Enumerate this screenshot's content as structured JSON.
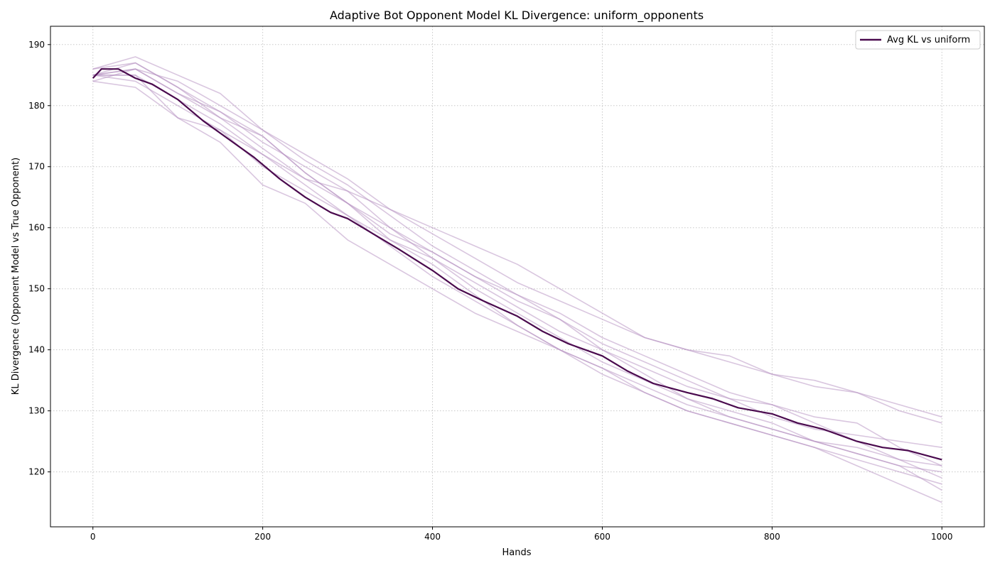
{
  "chart_data": {
    "type": "line",
    "title": "Adaptive Bot Opponent Model KL Divergence: uniform_opponents",
    "xlabel": "Hands",
    "ylabel": "KL Divergence (Opponent Model vs True Opponent)",
    "xlim": [
      -50,
      1050
    ],
    "ylim": [
      111,
      193
    ],
    "xticks": [
      0,
      200,
      400,
      600,
      800,
      1000
    ],
    "yticks": [
      120,
      130,
      140,
      150,
      160,
      170,
      180,
      190
    ],
    "grid": true,
    "legend_position": "top-right",
    "colors": {
      "average": "#4a0a4e",
      "runs": "#b48ec0"
    },
    "series": [
      {
        "name": "Avg KL vs uniform",
        "role": "average",
        "x": [
          0,
          10,
          20,
          30,
          50,
          70,
          100,
          130,
          160,
          190,
          220,
          250,
          280,
          300,
          330,
          360,
          400,
          430,
          460,
          500,
          530,
          560,
          600,
          630,
          660,
          700,
          730,
          760,
          800,
          830,
          860,
          900,
          930,
          960,
          1000
        ],
        "y": [
          184.5,
          186,
          186,
          186,
          184.5,
          183.5,
          181,
          177.5,
          174.5,
          171.5,
          168,
          165,
          162.5,
          161.5,
          159,
          156.5,
          153,
          150,
          148,
          145.5,
          143,
          141,
          139,
          136.5,
          134.5,
          133,
          132,
          130.5,
          129.5,
          128,
          127,
          125,
          124,
          123.5,
          122
        ]
      },
      {
        "role": "run",
        "x": [
          0,
          50,
          100,
          150,
          200,
          250,
          300,
          350,
          400,
          450,
          500,
          550,
          600,
          650,
          700,
          750,
          800,
          850,
          900,
          950,
          1000
        ],
        "y": [
          185,
          186,
          182,
          179,
          175,
          169,
          164,
          158,
          155,
          151,
          147,
          143,
          140,
          137,
          134,
          132,
          131,
          129,
          128,
          124,
          121
        ]
      },
      {
        "role": "run",
        "x": [
          0,
          50,
          100,
          150,
          200,
          250,
          300,
          350,
          400,
          450,
          500,
          550,
          600,
          650,
          700,
          750,
          800,
          850,
          900,
          950,
          1000
        ],
        "y": [
          185,
          185,
          178,
          176,
          172,
          168,
          166,
          163,
          160,
          157,
          154,
          150,
          146,
          142,
          140,
          139,
          136,
          135,
          133,
          131,
          129
        ]
      },
      {
        "role": "run",
        "x": [
          0,
          50,
          100,
          150,
          200,
          250,
          300,
          350,
          400,
          450,
          500,
          550,
          600,
          650,
          700,
          750,
          800,
          850,
          900,
          950,
          1000
        ],
        "y": [
          184,
          183,
          178,
          174,
          167,
          164,
          158,
          154,
          150,
          146,
          143,
          140,
          137,
          133,
          130,
          128,
          126,
          124,
          121,
          118,
          115
        ]
      },
      {
        "role": "run",
        "x": [
          0,
          50,
          100,
          150,
          200,
          250,
          300,
          350,
          400,
          450,
          500,
          550,
          600,
          650,
          700,
          750,
          800,
          850,
          900,
          950,
          1000
        ],
        "y": [
          186,
          187,
          183,
          179,
          174,
          170,
          166,
          160,
          156,
          152,
          149,
          146,
          142,
          139,
          136,
          133,
          131,
          128,
          125,
          122,
          119
        ]
      },
      {
        "role": "run",
        "x": [
          0,
          50,
          100,
          150,
          200,
          250,
          300,
          350,
          400,
          450,
          500,
          550,
          600,
          650,
          700,
          750,
          800,
          850,
          900,
          950,
          1000
        ],
        "y": [
          185,
          184,
          180,
          176,
          170,
          166,
          162,
          158,
          154,
          149,
          144,
          140,
          137,
          134,
          131,
          129,
          127,
          125,
          123,
          121,
          120
        ]
      },
      {
        "role": "run",
        "x": [
          0,
          50,
          100,
          150,
          200,
          250,
          300,
          350,
          400,
          450,
          500,
          550,
          600,
          650,
          700,
          750,
          800,
          850,
          900,
          950,
          1000
        ],
        "y": [
          184,
          186,
          182,
          178,
          175,
          169,
          164,
          159,
          156,
          152,
          148,
          145,
          140,
          136,
          132,
          130,
          128,
          125,
          123,
          121,
          117
        ]
      },
      {
        "role": "run",
        "x": [
          0,
          50,
          100,
          150,
          200,
          250,
          300,
          350,
          400,
          450,
          500,
          550,
          600,
          650,
          700,
          750,
          800,
          850,
          900,
          950,
          1000
        ],
        "y": [
          185,
          186,
          184,
          180,
          176,
          172,
          168,
          163,
          159,
          155,
          151,
          148,
          145,
          142,
          140,
          138,
          136,
          134,
          133,
          130,
          128
        ]
      },
      {
        "role": "run",
        "x": [
          0,
          50,
          100,
          150,
          200,
          250,
          300,
          350,
          400,
          450,
          500,
          550,
          600,
          650,
          700,
          750,
          800,
          850,
          900,
          950,
          1000
        ],
        "y": [
          185,
          185,
          181,
          177,
          172,
          167,
          162,
          157,
          152,
          148,
          144,
          140,
          136,
          133,
          130,
          128,
          126,
          124,
          122,
          120,
          118
        ]
      },
      {
        "role": "run",
        "x": [
          0,
          50,
          100,
          150,
          200,
          250,
          300,
          350,
          400,
          450,
          500,
          550,
          600,
          650,
          700,
          750,
          800,
          850,
          900,
          950,
          1000
        ],
        "y": [
          185,
          187,
          183,
          178,
          173,
          168,
          164,
          160,
          155,
          150,
          146,
          142,
          138,
          135,
          132,
          129,
          127,
          125,
          124,
          122,
          121
        ]
      },
      {
        "role": "run",
        "x": [
          0,
          50,
          100,
          150,
          200,
          250,
          300,
          350,
          400,
          450,
          500,
          550,
          600,
          650,
          700,
          750,
          800,
          850,
          900,
          950,
          1000
        ],
        "y": [
          186,
          188,
          185,
          182,
          176,
          171,
          167,
          162,
          157,
          153,
          149,
          145,
          141,
          138,
          135,
          132,
          129,
          127,
          126,
          125,
          124
        ]
      }
    ]
  }
}
